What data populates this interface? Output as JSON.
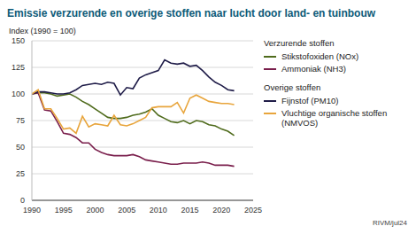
{
  "chart_data": {
    "type": "line",
    "title": "Emissie verzurende en overige stoffen naar lucht door land- en tuinbouw",
    "y_label": "Index (1990 = 100)",
    "source": "RIVM/jul24",
    "x": [
      1990,
      1991,
      1992,
      1993,
      1994,
      1995,
      1996,
      1997,
      1998,
      1999,
      2000,
      2001,
      2002,
      2003,
      2004,
      2005,
      2006,
      2007,
      2008,
      2009,
      2010,
      2011,
      2012,
      2013,
      2014,
      2015,
      2016,
      2017,
      2018,
      2019,
      2020,
      2021,
      2022
    ],
    "series": [
      {
        "name": "Stikstofoxiden (NOx)",
        "group": "Verzurende stoffen",
        "color": "#4f6b1c",
        "values": [
          100,
          101,
          101,
          100,
          98,
          99,
          100,
          97,
          93,
          90,
          86,
          82,
          78,
          77,
          77,
          78,
          80,
          81,
          83,
          86,
          80,
          77,
          74,
          73,
          75,
          72,
          75,
          74,
          71,
          70,
          67,
          65,
          61
        ]
      },
      {
        "name": "Ammoniak (NH3)",
        "group": "Verzurende stoffen",
        "color": "#7a1f4c",
        "values": [
          100,
          101,
          85,
          84,
          74,
          63,
          62,
          59,
          54,
          54,
          48,
          45,
          43,
          42,
          42,
          42,
          43,
          41,
          38,
          37,
          36,
          35,
          34,
          34,
          35,
          35,
          35,
          36,
          35,
          33,
          33,
          33,
          32
        ]
      },
      {
        "name": "Fijnstof (PM10)",
        "group": "Overige stoffen",
        "color": "#1f1c48",
        "values": [
          100,
          102,
          102,
          101,
          100,
          100,
          101,
          104,
          108,
          109,
          110,
          109,
          111,
          110,
          99,
          106,
          105,
          115,
          118,
          120,
          122,
          132,
          129,
          128,
          129,
          126,
          127,
          122,
          116,
          111,
          108,
          104,
          103
        ]
      },
      {
        "name": "Vluchtige organische stoffen (NMVOS)",
        "group": "Overige stoffen",
        "color": "#e8a53c",
        "values": [
          100,
          104,
          86,
          86,
          77,
          67,
          68,
          63,
          79,
          69,
          72,
          71,
          70,
          80,
          71,
          70,
          72,
          75,
          78,
          87,
          88,
          88,
          88,
          92,
          82,
          96,
          99,
          96,
          93,
          92,
          91,
          91,
          90
        ]
      }
    ],
    "xlim": [
      1990,
      2025
    ],
    "xticks": [
      1990,
      1995,
      2000,
      2005,
      2010,
      2015,
      2020,
      2025
    ],
    "ylim": [
      0,
      150
    ],
    "yticks": [
      0,
      25,
      50,
      75,
      100,
      125,
      150
    ],
    "grid": true
  }
}
